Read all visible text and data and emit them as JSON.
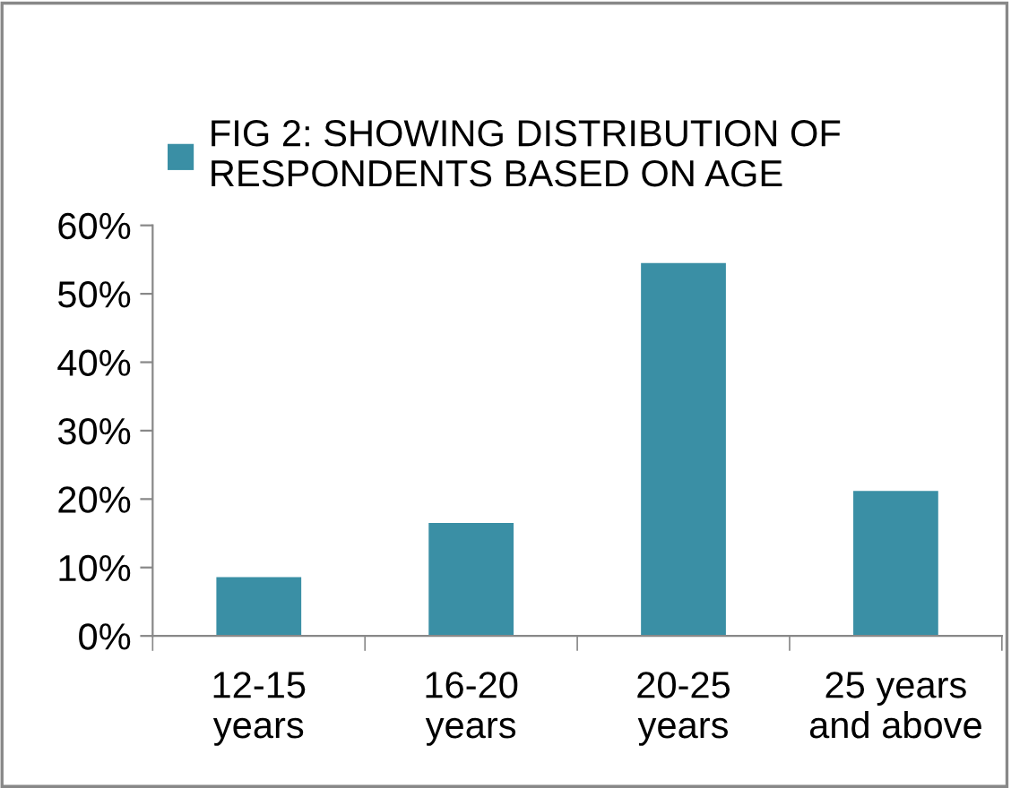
{
  "chart_data": {
    "type": "bar",
    "categories": [
      "12-15\nyears",
      "16-20\nyears",
      "20-25\nyears",
      "25 years\nand above"
    ],
    "series": [
      {
        "name": "FIG 2: SHOWING DISTRIBUTION OF\nRESPONDENTS BASED ON AGE",
        "color": "#3a8fa5",
        "values": [
          8.6,
          16.5,
          54.5,
          21.2
        ]
      }
    ],
    "ylim": [
      0,
      60
    ],
    "yticks": [
      {
        "value": 0,
        "label": "0%"
      },
      {
        "value": 10,
        "label": "10%"
      },
      {
        "value": 20,
        "label": "20%"
      },
      {
        "value": 30,
        "label": "30%"
      },
      {
        "value": 40,
        "label": "40%"
      },
      {
        "value": 50,
        "label": "50%"
      },
      {
        "value": 60,
        "label": "60%"
      }
    ],
    "grid": false,
    "legend": "top"
  }
}
